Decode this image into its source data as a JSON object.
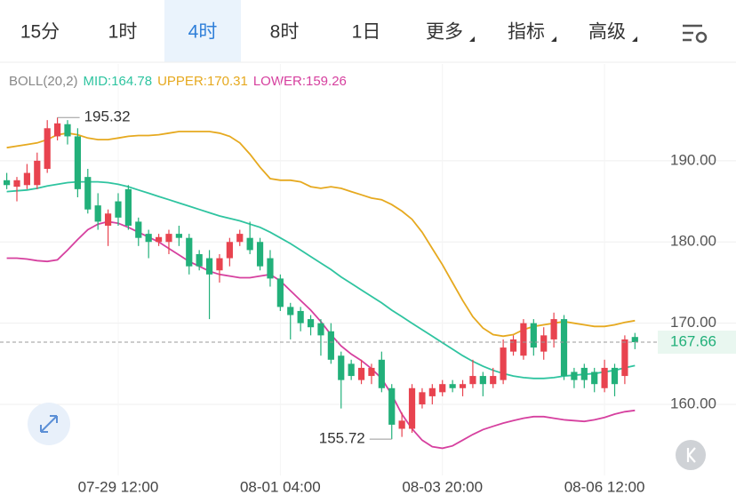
{
  "tabs": {
    "items": [
      "15分",
      "1时",
      "4时",
      "8时",
      "1日",
      "更多",
      "指标",
      "高级"
    ],
    "active": 2,
    "dropdown": [
      5,
      6,
      7
    ]
  },
  "chart_data": {
    "type": "candlestick",
    "indicator": "BOLL(20,2)",
    "categories": [
      null,
      null,
      null,
      null,
      null,
      null,
      null,
      null,
      null,
      null,
      null,
      "07-29 12:00",
      null,
      null,
      null,
      null,
      null,
      null,
      null,
      null,
      null,
      null,
      null,
      null,
      null,
      null,
      null,
      "08-01 04:00",
      null,
      null,
      null,
      null,
      null,
      null,
      null,
      null,
      null,
      null,
      null,
      null,
      null,
      null,
      null,
      "08-03 20:00",
      null,
      null,
      null,
      null,
      null,
      null,
      null,
      null,
      null,
      null,
      null,
      null,
      null,
      null,
      null,
      "08-06 12:00",
      null,
      null,
      null
    ],
    "ohlc": [
      [
        187.6,
        188.5,
        186.5,
        187
      ],
      [
        186.8,
        188,
        185,
        187.6
      ],
      [
        187,
        189.6,
        186.5,
        188.5
      ],
      [
        187,
        191,
        186.5,
        190
      ],
      [
        189,
        195,
        188.5,
        194
      ],
      [
        193,
        195.32,
        192.5,
        194.6
      ],
      [
        194.5,
        195,
        192,
        193
      ],
      [
        193,
        194,
        185.5,
        186.5
      ],
      [
        188,
        189,
        183.5,
        184
      ],
      [
        184.5,
        186,
        181.5,
        182.5
      ],
      [
        182,
        184,
        179.5,
        183.5
      ],
      [
        185,
        186,
        182,
        183
      ],
      [
        186.5,
        187,
        181.5,
        182
      ],
      [
        182.5,
        183,
        179.5,
        180.5
      ],
      [
        181,
        181.5,
        178,
        180
      ],
      [
        180,
        181,
        179.5,
        180.6
      ],
      [
        180,
        181.5,
        178.5,
        181
      ],
      [
        181,
        182,
        179.5,
        180.5
      ],
      [
        180.5,
        181,
        176,
        177
      ],
      [
        178.5,
        179,
        176.5,
        177
      ],
      [
        178,
        179,
        170.5,
        176
      ],
      [
        176.5,
        178.5,
        175,
        178
      ],
      [
        178,
        180.5,
        177,
        180
      ],
      [
        180,
        181.5,
        179.5,
        181
      ],
      [
        180.5,
        182.5,
        178.5,
        179
      ],
      [
        180,
        180.5,
        176.5,
        177
      ],
      [
        178,
        179,
        174.5,
        175.5
      ],
      [
        175.5,
        176,
        171.5,
        172
      ],
      [
        172,
        172.5,
        168,
        171
      ],
      [
        171.5,
        172,
        169,
        170
      ],
      [
        170.5,
        171,
        168.5,
        169.5
      ],
      [
        170,
        170.5,
        166,
        168.5
      ],
      [
        169,
        170,
        165,
        165.5
      ],
      [
        166,
        166.5,
        159.5,
        163
      ],
      [
        165,
        165.5,
        163,
        163.5
      ],
      [
        163,
        165.5,
        162.5,
        164.5
      ],
      [
        163.5,
        165,
        162.5,
        164.5
      ],
      [
        165.5,
        166.5,
        161.5,
        162
      ],
      [
        162,
        162.5,
        155.72,
        157.5
      ],
      [
        157,
        159,
        156,
        158
      ],
      [
        157,
        162.5,
        156.5,
        162
      ],
      [
        160,
        162,
        159.5,
        161.5
      ],
      [
        161,
        162.5,
        160,
        162
      ],
      [
        161.5,
        163,
        161,
        162.5
      ],
      [
        162.5,
        163,
        161.5,
        162
      ],
      [
        162,
        163,
        161,
        162.5
      ],
      [
        162.5,
        165.5,
        162,
        163.5
      ],
      [
        163.5,
        164,
        161,
        162.5
      ],
      [
        162.5,
        164.5,
        162,
        163.5
      ],
      [
        163,
        168,
        162.5,
        167
      ],
      [
        166.5,
        168.5,
        166,
        168
      ],
      [
        166,
        170.5,
        165.5,
        170
      ],
      [
        170,
        170.5,
        166,
        167
      ],
      [
        166.5,
        169.5,
        165.5,
        168.5
      ],
      [
        168,
        171.3,
        167,
        170.5
      ],
      [
        170.5,
        171,
        163,
        163.5
      ],
      [
        164,
        164.5,
        162,
        163
      ],
      [
        164.5,
        165,
        162,
        163
      ],
      [
        164,
        164.5,
        161.5,
        162.5
      ],
      [
        162,
        165.5,
        161.5,
        164.5
      ],
      [
        164.5,
        165,
        161,
        162.5
      ],
      [
        163.5,
        168.5,
        162.5,
        168
      ],
      [
        168.3,
        168.8,
        166.8,
        167.66
      ]
    ],
    "up_color": "#e8434f",
    "down_color": "#22b07a",
    "high_label": "195.32",
    "low_label": "155.72",
    "series": [
      {
        "name": "MID:164.78",
        "color": "#2fc4a0",
        "values": [
          186.2,
          186.3,
          186.4,
          186.6,
          186.9,
          187.1,
          187.3,
          187.4,
          187.4,
          187.4,
          187.3,
          187.1,
          186.8,
          186.4,
          186.0,
          185.6,
          185.2,
          184.8,
          184.4,
          184.0,
          183.6,
          183.2,
          182.9,
          182.6,
          182.2,
          181.8,
          181.2,
          180.5,
          179.8,
          179.0,
          178.2,
          177.4,
          176.6,
          175.7,
          174.9,
          174.1,
          173.3,
          172.5,
          171.6,
          170.8,
          170.0,
          169.2,
          168.4,
          167.6,
          166.8,
          166.0,
          165.3,
          164.7,
          164.2,
          163.8,
          163.5,
          163.3,
          163.2,
          163.2,
          163.3,
          163.5,
          163.6,
          163.7,
          163.8,
          164.0,
          164.2,
          164.5,
          164.78
        ]
      },
      {
        "name": "UPPER:170.31",
        "color": "#e6a91f",
        "values": [
          191.6,
          191.8,
          192,
          192.2,
          192.6,
          193.2,
          193.4,
          193.2,
          192.8,
          192.6,
          192.6,
          192.8,
          193,
          193.1,
          193.1,
          193.2,
          193.4,
          193.6,
          193.6,
          193.6,
          193.6,
          193.4,
          193,
          192.2,
          190.8,
          189.2,
          187.8,
          187.6,
          187.6,
          187.4,
          186.8,
          186.6,
          186.8,
          186.6,
          186.2,
          185.8,
          185.4,
          185.2,
          184.6,
          183.8,
          182.8,
          181.2,
          179.2,
          177.2,
          175.0,
          172.8,
          170.8,
          169.4,
          168.6,
          168.4,
          168.6,
          169.2,
          169.6,
          169.8,
          170,
          170.2,
          170.0,
          169.8,
          169.6,
          169.6,
          169.8,
          170.1,
          170.31
        ]
      },
      {
        "name": "LOWER:159.26",
        "color": "#d6409f",
        "values": [
          178.0,
          178.0,
          177.9,
          177.7,
          177.6,
          177.8,
          179.0,
          180.3,
          181.5,
          182.2,
          182.5,
          182.3,
          181.8,
          181.2,
          180.6,
          180.0,
          179.2,
          178.4,
          177.6,
          177.0,
          176.4,
          176.0,
          175.8,
          175.6,
          175.6,
          175.8,
          176.0,
          175.2,
          174.0,
          172.8,
          171.6,
          170.2,
          168.6,
          167.2,
          166.2,
          165.4,
          164.4,
          163.2,
          161.2,
          158.8,
          157.0,
          155.6,
          154.8,
          154.6,
          154.9,
          155.6,
          156.3,
          156.9,
          157.3,
          157.7,
          158.0,
          158.3,
          158.5,
          158.5,
          158.3,
          158.1,
          158.0,
          157.9,
          158.1,
          158.4,
          158.8,
          159.1,
          159.26
        ]
      }
    ],
    "ylim": [
      151.8,
      198.3
    ],
    "yticks": [
      {
        "value": 160,
        "label": "160.00"
      },
      {
        "value": 170,
        "label": "170.00"
      },
      {
        "value": 180,
        "label": "180.00"
      },
      {
        "value": 190,
        "label": "190.00"
      }
    ],
    "grid": true
  }
}
